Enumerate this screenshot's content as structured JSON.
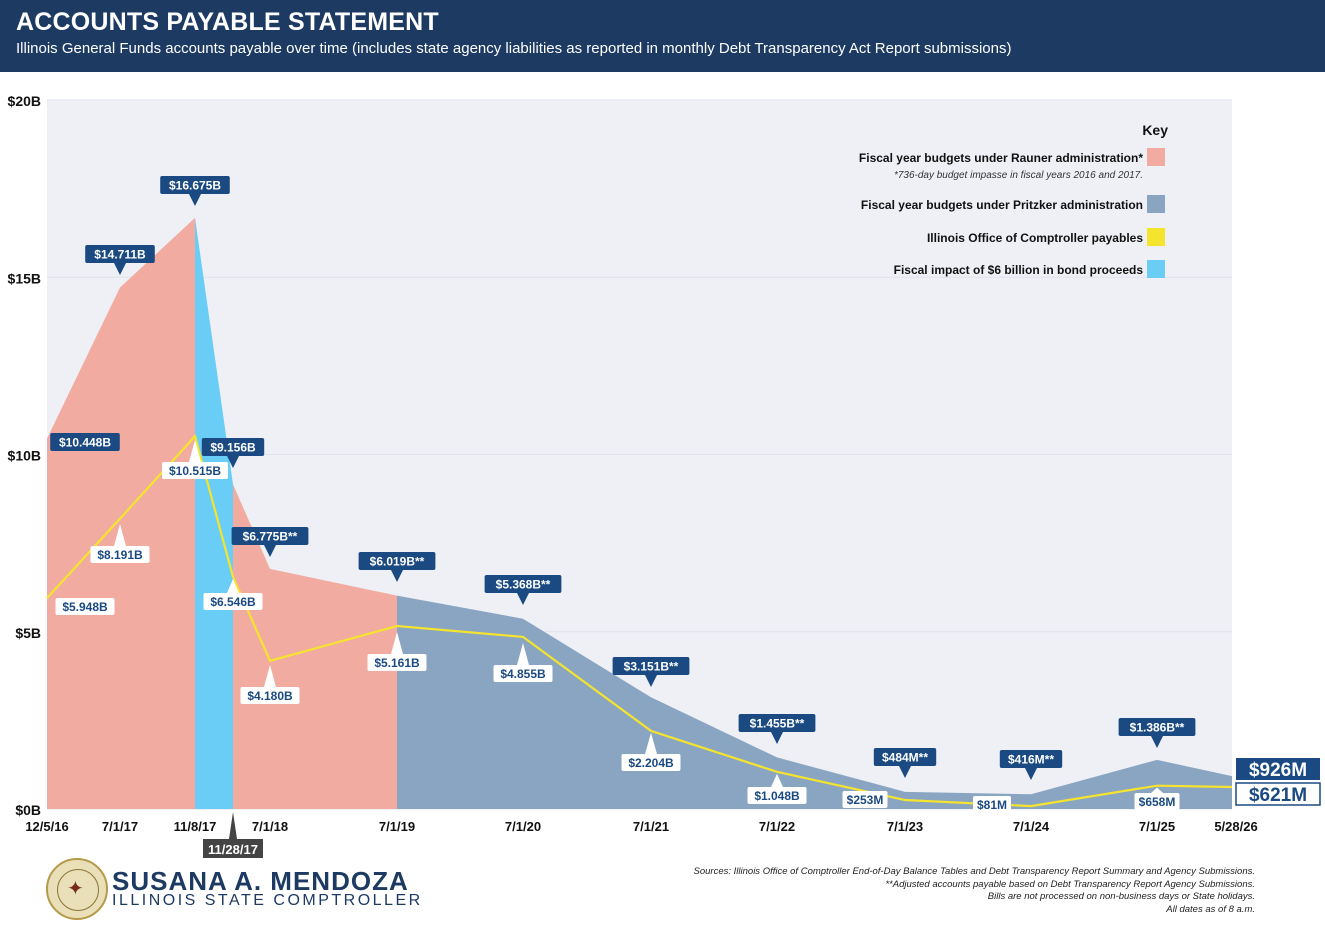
{
  "header": {
    "title": "ACCOUNTS PAYABLE STATEMENT",
    "subtitle": "Illinois General Funds accounts payable over time (includes state agency liabilities as reported in monthly Debt Transparency Act Report submissions)"
  },
  "colors": {
    "header_bg": "#1d3a63",
    "plot_bg": "#eef0f6",
    "rauner": "#f2aba1",
    "pritzker": "#8aa5c2",
    "comptroller_line": "#f5e42e",
    "bond": "#6acdf5",
    "label_dark": "#1b4a82"
  },
  "chart_data": {
    "type": "area",
    "y_ticks": [
      "$0B",
      "$5B",
      "$10B",
      "$15B",
      "$20B"
    ],
    "ylim": [
      0,
      20
    ],
    "x_ticks": [
      "12/5/16",
      "7/1/17",
      "11/8/17",
      "7/1/18",
      "7/1/19",
      "7/1/20",
      "7/1/21",
      "7/1/22",
      "7/1/23",
      "7/1/24",
      "7/1/25",
      "5/28/26"
    ],
    "bond_date_label": "11/28/17",
    "series": [
      {
        "name": "Fiscal year budgets under Rauner administration*",
        "points": [
          {
            "x": "12/5/16",
            "y": 10.448,
            "label": "$10.448B"
          },
          {
            "x": "7/1/17",
            "y": 14.711,
            "label": "$14.711B"
          },
          {
            "x": "11/8/17",
            "y": 16.675,
            "label": "$16.675B"
          },
          {
            "x": "11/28/17",
            "y": 9.156,
            "label": "$9.156B"
          },
          {
            "x": "7/1/18",
            "y": 6.775,
            "label": "$6.775B**"
          },
          {
            "x": "7/1/19",
            "y": 6.019,
            "label": "$6.019B**"
          }
        ]
      },
      {
        "name": "Fiscal year budgets under Pritzker administration",
        "points": [
          {
            "x": "7/1/19",
            "y": 6.019,
            "label": "$6.019B**"
          },
          {
            "x": "7/1/20",
            "y": 5.368,
            "label": "$5.368B**"
          },
          {
            "x": "7/1/21",
            "y": 3.151,
            "label": "$3.151B**"
          },
          {
            "x": "7/1/22",
            "y": 1.455,
            "label": "$1.455B**"
          },
          {
            "x": "7/1/23",
            "y": 0.484,
            "label": "$484M**"
          },
          {
            "x": "7/1/24",
            "y": 0.416,
            "label": "$416M**"
          },
          {
            "x": "7/1/25",
            "y": 1.386,
            "label": "$1.386B**"
          },
          {
            "x": "5/28/26",
            "y": 0.926,
            "label": "$926M"
          }
        ]
      },
      {
        "name": "Illinois Office of Comptroller payables",
        "points": [
          {
            "x": "12/5/16",
            "y": 5.948,
            "label": "$5.948B"
          },
          {
            "x": "7/1/17",
            "y": 8.191,
            "label": "$8.191B"
          },
          {
            "x": "11/8/17",
            "y": 10.515,
            "label": "$10.515B"
          },
          {
            "x": "11/28/17",
            "y": 6.546,
            "label": "$6.546B"
          },
          {
            "x": "7/1/18",
            "y": 4.18,
            "label": "$4.180B"
          },
          {
            "x": "7/1/19",
            "y": 5.161,
            "label": "$5.161B"
          },
          {
            "x": "7/1/20",
            "y": 4.855,
            "label": "$4.855B"
          },
          {
            "x": "7/1/21",
            "y": 2.204,
            "label": "$2.204B"
          },
          {
            "x": "7/1/22",
            "y": 1.048,
            "label": "$1.048B"
          },
          {
            "x": "7/1/23",
            "y": 0.253,
            "label": "$253M"
          },
          {
            "x": "7/1/24",
            "y": 0.081,
            "label": "$81M"
          },
          {
            "x": "7/1/25",
            "y": 0.658,
            "label": "$658M"
          },
          {
            "x": "5/28/26",
            "y": 0.621,
            "label": "$621M"
          }
        ]
      },
      {
        "name": "Fiscal impact of $6 billion in bond proceeds",
        "points": [
          {
            "x": "11/8/17",
            "y": 16.675
          },
          {
            "x": "11/28/17",
            "y": 9.156
          }
        ]
      }
    ],
    "legend": {
      "title": "Key",
      "placement": "top-right",
      "note": "*736-day budget impasse in fiscal years 2016 and 2017."
    }
  },
  "footer": {
    "name": "SUSANA A. MENDOZA",
    "title": "ILLINOIS STATE COMPTROLLER",
    "notes": [
      "Sources: Illinois Office of Comptroller End-of-Day Balance Tables and Debt Transparency Report Summary and Agency Submissions.",
      "**Adjusted accounts payable based on Debt Transparency Report Agency Submissions.",
      "Bills are not processed on non-business days or State holidays.",
      "All dates as of 8 a.m."
    ]
  }
}
